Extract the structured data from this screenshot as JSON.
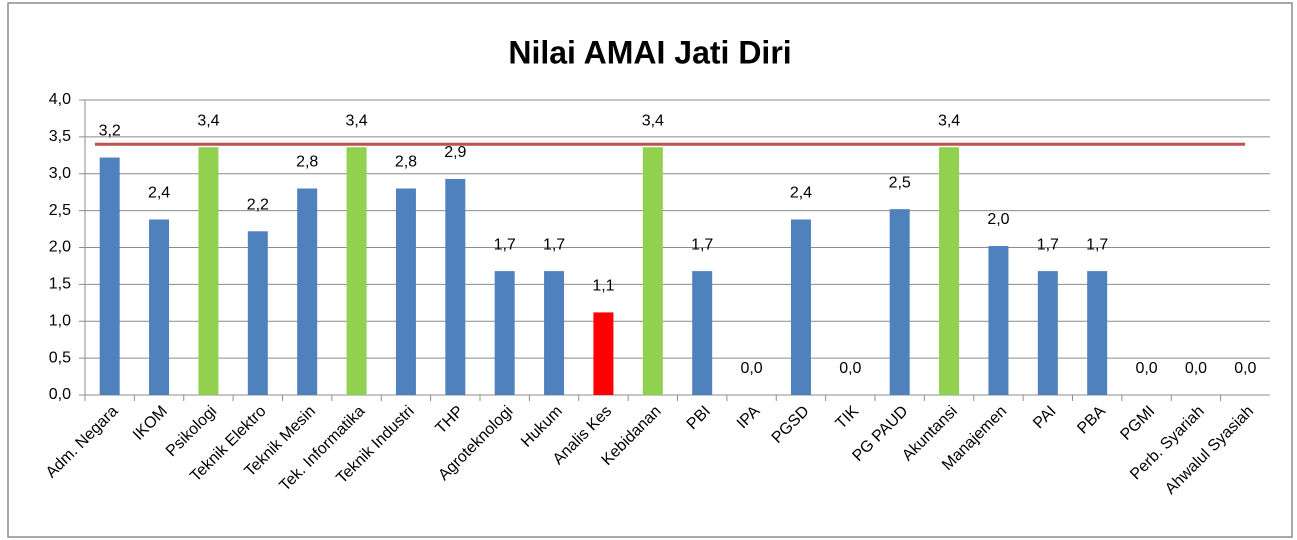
{
  "chart_data": {
    "type": "bar",
    "title": "Nilai AMAI Jati Diri",
    "categories": [
      "Adm. Negara",
      "IKOM",
      "Psikologi",
      "Teknik Elektro",
      "Teknik Mesin",
      "Tek. Informatika",
      "Teknik Industri",
      "THP",
      "Agroteknologi",
      "Hukum",
      "Analis Kes",
      "Kebidanan",
      "PBI",
      "IPA",
      "PGSD",
      "TIK",
      "PG PAUD",
      "Akuntansi",
      "Manajemen",
      "PAI",
      "PBA",
      "PGMI",
      "Perb. Syariah",
      "Ahwalul Syasiah"
    ],
    "values": [
      3.22,
      2.38,
      3.36,
      2.22,
      2.8,
      3.36,
      2.8,
      2.93,
      1.68,
      1.68,
      1.12,
      3.36,
      1.68,
      0,
      2.38,
      0,
      2.52,
      3.36,
      2.02,
      1.68,
      1.68,
      0,
      0,
      0
    ],
    "value_labels": [
      "3,2",
      "2,4",
      "3,4",
      "2,2",
      "2,8",
      "3,4",
      "2,8",
      "2,9",
      "1,7",
      "1,7",
      "1,1",
      "3,4",
      "1,7",
      "0,0",
      "2,4",
      "0,0",
      "2,5",
      "3,4",
      "2,0",
      "1,7",
      "1,7",
      "0,0",
      "0,0",
      "0,0"
    ],
    "colors": [
      "#4f81bd",
      "#4f81bd",
      "#92d050",
      "#4f81bd",
      "#4f81bd",
      "#92d050",
      "#4f81bd",
      "#4f81bd",
      "#4f81bd",
      "#4f81bd",
      "#ff0000",
      "#92d050",
      "#4f81bd",
      "#4f81bd",
      "#4f81bd",
      "#4f81bd",
      "#4f81bd",
      "#92d050",
      "#4f81bd",
      "#4f81bd",
      "#4f81bd",
      "#4f81bd",
      "#4f81bd",
      "#4f81bd"
    ],
    "reference_line": {
      "value": 3.4,
      "color": "#c0504d"
    },
    "ylim": [
      0,
      4
    ],
    "yticks": [
      {
        "value": 0,
        "label": "0,0"
      },
      {
        "value": 0.5,
        "label": "0,5"
      },
      {
        "value": 1,
        "label": "1,0"
      },
      {
        "value": 1.5,
        "label": "1,5"
      },
      {
        "value": 2,
        "label": "2,0"
      },
      {
        "value": 2.5,
        "label": "2,5"
      },
      {
        "value": 3,
        "label": "3,0"
      },
      {
        "value": 3.5,
        "label": "3,5"
      },
      {
        "value": 4,
        "label": "4,0"
      }
    ],
    "grid": true
  }
}
